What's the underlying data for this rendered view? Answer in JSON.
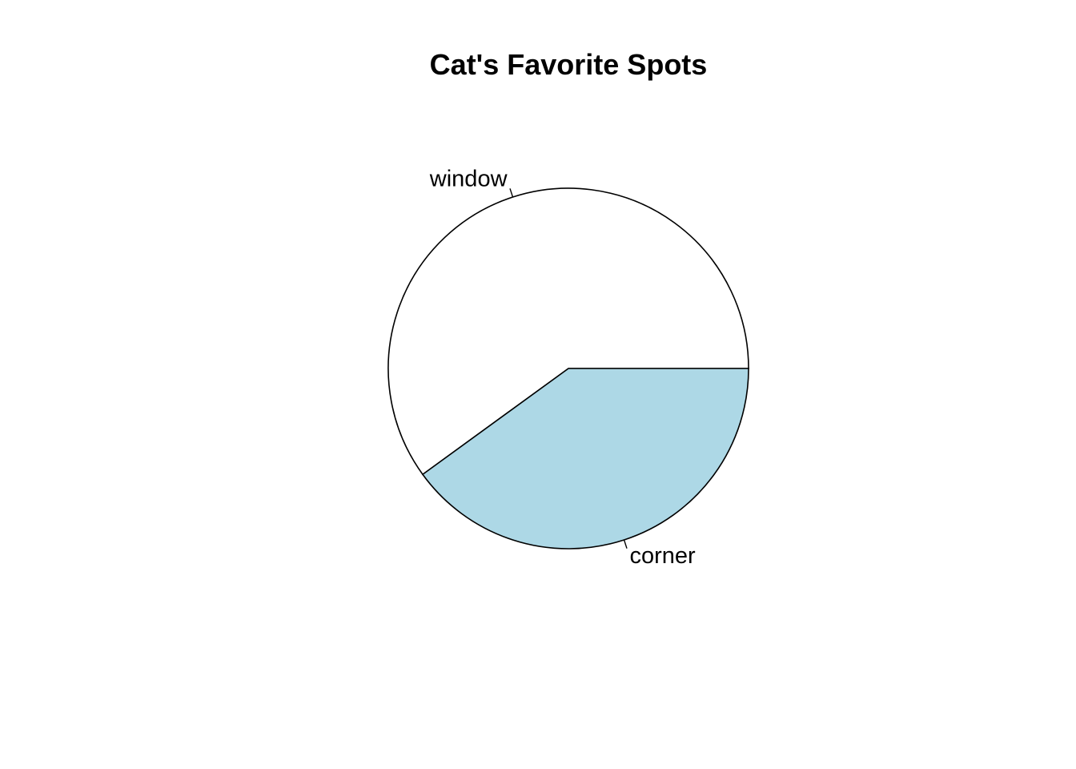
{
  "chart_data": {
    "type": "pie",
    "title": "Cat's Favorite Spots",
    "slices": [
      {
        "label": "window",
        "value": 60,
        "color": "#FFFFFF"
      },
      {
        "label": "corner",
        "value": 40,
        "color": "#ADD8E6"
      }
    ],
    "start_angle_deg": 0,
    "direction": "counterclockwise",
    "border_color": "#000000",
    "legend": false
  }
}
